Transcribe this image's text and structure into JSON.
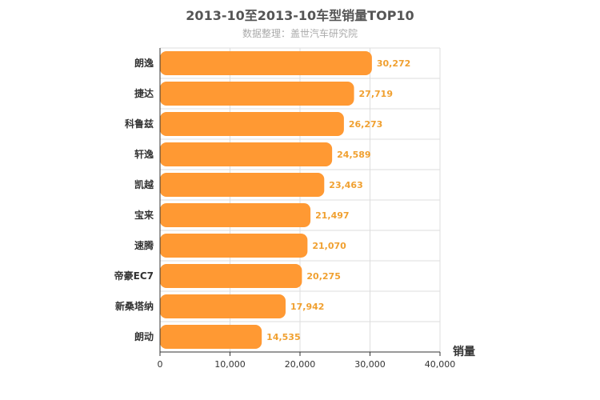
{
  "chart_data": {
    "type": "bar",
    "orientation": "horizontal",
    "title": "2013-10至2013-10车型销量TOP10",
    "subtitle": "数据整理：盖世汽车研究院",
    "xlabel": "销量",
    "categories": [
      "朗逸",
      "捷达",
      "科鲁兹",
      "轩逸",
      "凯越",
      "宝来",
      "速腾",
      "帝豪EC7",
      "新桑塔纳",
      "朗动"
    ],
    "values": [
      30272,
      27719,
      26273,
      24589,
      23463,
      21497,
      21070,
      20275,
      17942,
      14535
    ],
    "value_labels": [
      "30,272",
      "27,719",
      "26,273",
      "24,589",
      "23,463",
      "21,497",
      "21,070",
      "20,275",
      "17,942",
      "14,535"
    ],
    "xlim": [
      0,
      40000
    ],
    "xticks": [
      0,
      10000,
      20000,
      30000,
      40000
    ],
    "xtick_labels": [
      "0",
      "10,000",
      "20,000",
      "30,000",
      "40,000"
    ],
    "grid": true,
    "bar_color": "#ff9933",
    "data_label_color": "#f0a030"
  }
}
